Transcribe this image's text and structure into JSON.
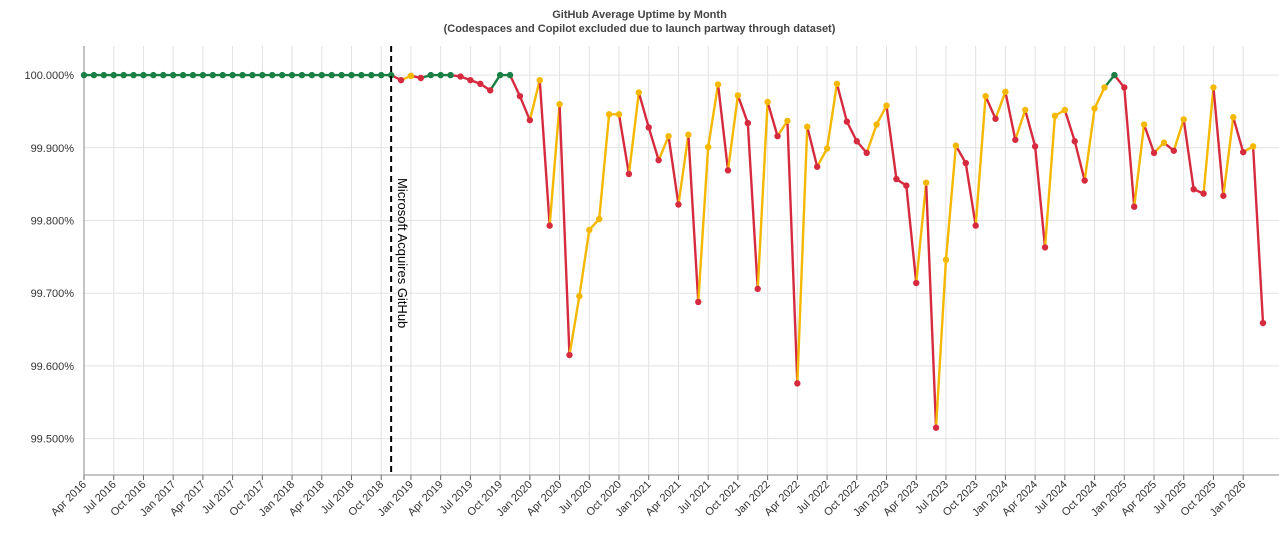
{
  "chart_data": {
    "type": "line",
    "title": "GitHub Average Uptime by Month",
    "subtitle": "(Codespaces and Copilot excluded due to launch partway through dataset)",
    "xlabel": "",
    "ylabel": "",
    "ylim": [
      99.45,
      100.04
    ],
    "y_ticks": [
      "99.500%",
      "99.600%",
      "99.700%",
      "99.800%",
      "99.900%",
      "100.000%"
    ],
    "y_tick_values": [
      99.5,
      99.6,
      99.7,
      99.8,
      99.9,
      100.0
    ],
    "x_ticks": [
      "Apr 2016",
      "Jul 2016",
      "Oct 2016",
      "Jan 2017",
      "Apr 2017",
      "Jul 2017",
      "Oct 2017",
      "Jan 2018",
      "Apr 2018",
      "Jul 2018",
      "Oct 2018",
      "Jan 2019",
      "Apr 2019",
      "Jul 2019",
      "Oct 2019",
      "Jan 2020",
      "Apr 2020",
      "Jul 2020",
      "Oct 2020",
      "Jan 2021",
      "Apr 2021",
      "Jul 2021",
      "Oct 2021",
      "Jan 2022",
      "Apr 2022",
      "Jul 2022",
      "Oct 2022",
      "Jan 2023",
      "Apr 2023",
      "Jul 2023",
      "Oct 2023",
      "Jan 2024",
      "Apr 2024",
      "Jul 2024",
      "Oct 2024",
      "Jan 2025",
      "Apr 2025",
      "Jul 2025",
      "Oct 2025",
      "Jan 2026"
    ],
    "x_start": "Apr 2016",
    "grid": true,
    "legend": "none",
    "annotation": {
      "label": "Microsoft Acquires GitHub",
      "x": "Nov 2018"
    },
    "colors": {
      "up": "#1a7f45",
      "mid": "#f5b800",
      "down": "#d62b3f",
      "marker": "#000000",
      "grid": "#e2e2e2"
    },
    "series": [
      {
        "values": [
          100,
          100,
          100,
          100,
          100,
          100,
          100,
          100,
          100,
          100,
          100,
          100,
          100,
          100,
          100,
          100,
          100,
          100,
          100,
          100,
          100,
          100,
          100,
          100,
          100,
          100,
          100,
          100,
          100,
          100,
          100,
          100,
          99.993,
          99.999,
          99.996,
          100,
          100,
          100,
          99.998,
          99.993,
          99.988,
          99.979,
          100,
          100,
          99.971,
          99.938,
          99.993,
          99.793,
          99.96,
          99.615,
          99.696,
          99.787,
          99.802,
          99.946,
          99.946,
          99.864,
          99.976,
          99.928,
          99.883,
          99.916,
          99.822,
          99.918,
          99.688,
          99.901,
          99.987,
          99.869,
          99.972,
          99.934,
          99.706,
          99.963,
          99.916,
          99.937,
          99.576,
          99.929,
          99.874,
          99.899,
          99.988,
          99.936,
          99.909,
          99.893,
          99.932,
          99.958,
          99.857,
          99.848,
          99.714,
          99.852,
          99.515,
          99.746,
          99.903,
          99.879,
          99.793,
          99.971,
          99.94,
          99.977,
          99.911,
          99.952,
          99.902,
          99.763,
          99.944,
          99.952,
          99.909,
          99.855,
          99.954,
          99.983,
          100,
          99.983,
          99.819,
          99.932,
          99.893,
          99.907,
          99.896,
          99.939,
          99.843,
          99.837,
          99.983,
          99.834,
          99.942,
          99.894,
          99.902,
          99.659
        ]
      }
    ]
  }
}
